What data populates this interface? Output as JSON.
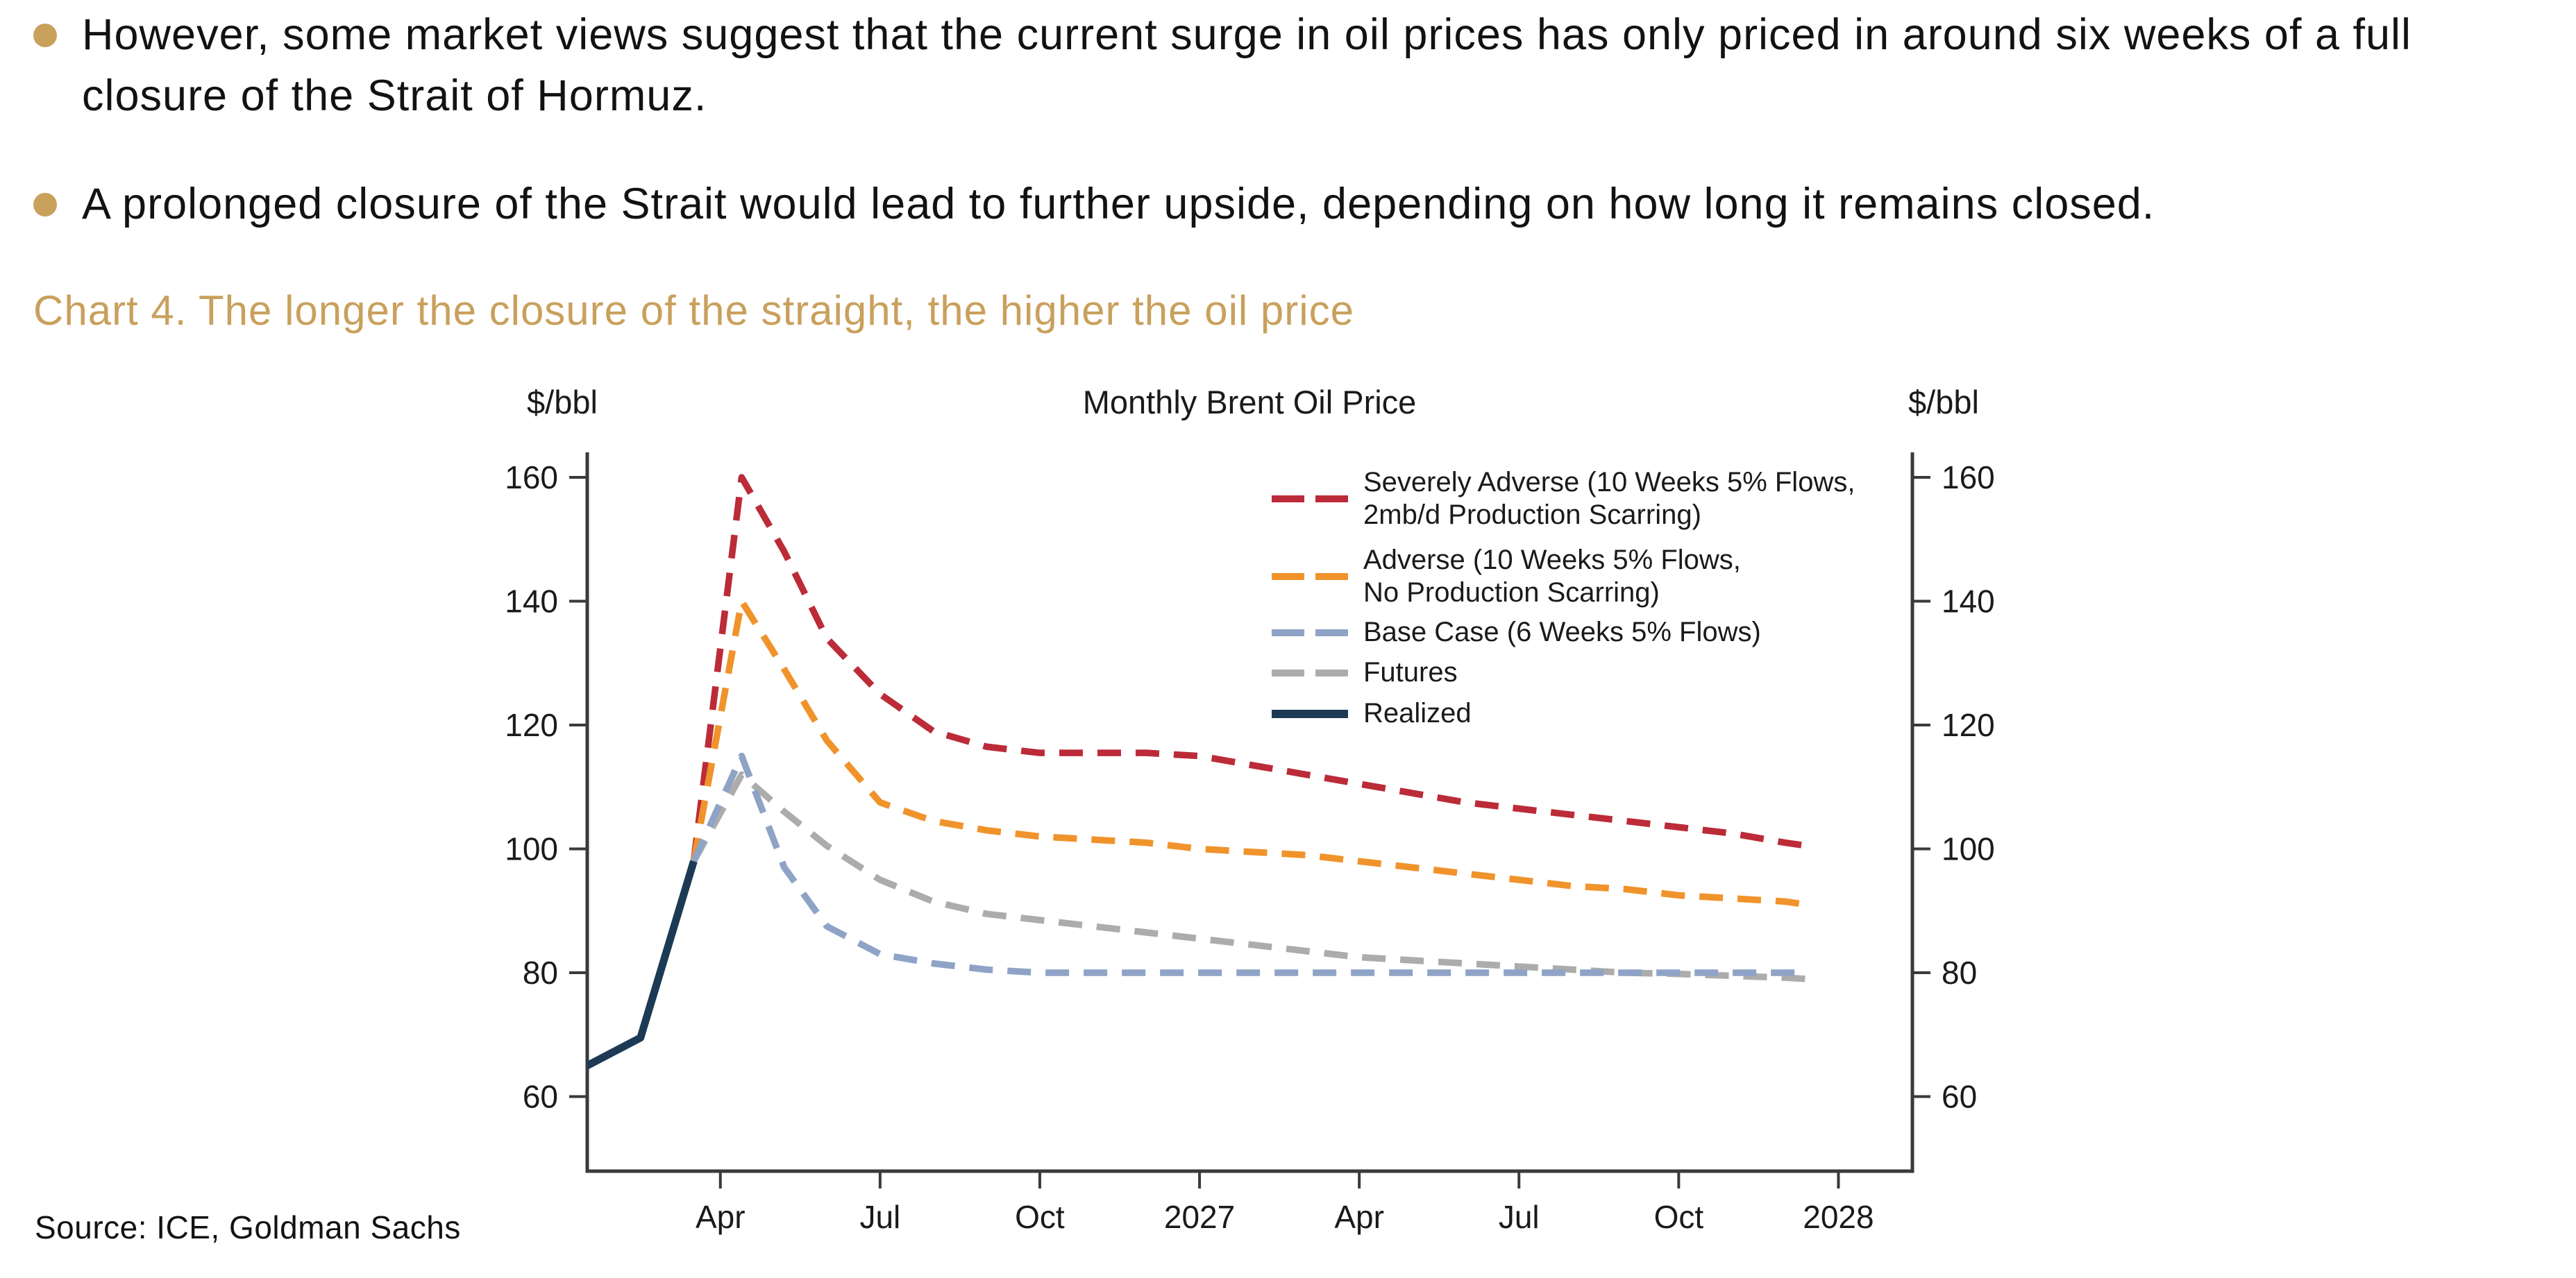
{
  "bullets": [
    {
      "text": "However, some market views suggest that the current surge in oil prices has only priced in around six weeks of a full closure of the Strait of Hormuz."
    },
    {
      "text": "A prolonged closure of the Strait would lead to further upside, depending on how long it remains closed."
    }
  ],
  "chart_heading": "Chart 4. The longer the closure of the straight, the higher the oil price",
  "source_line": "Source: ICE, Goldman Sachs",
  "colors": {
    "accent_gold": "#C9A05C",
    "severely_adverse_red": "#BC2B38",
    "adverse_orange": "#F0932B",
    "base_case_blue": "#8EA3C6",
    "futures_gray": "#ACACAC",
    "realized_navy": "#1C3A55",
    "axis_gray": "#3A3A3A"
  },
  "chart_data": {
    "type": "line",
    "title": "Monthly Brent Oil Price",
    "ylabel_left": "$/bbl",
    "ylabel_right": "$/bbl",
    "ylim": [
      48,
      164
    ],
    "y_ticks": [
      60,
      80,
      100,
      120,
      140,
      160
    ],
    "x_unit": "month index, 0 = Jan 2026",
    "x_ticks": [
      {
        "t": 3,
        "label": "Apr"
      },
      {
        "t": 6,
        "label": "Jul"
      },
      {
        "t": 9,
        "label": "Oct"
      },
      {
        "t": 12,
        "label": "2027"
      },
      {
        "t": 15,
        "label": "Apr"
      },
      {
        "t": 18,
        "label": "Jul"
      },
      {
        "t": 21,
        "label": "Oct"
      },
      {
        "t": 24,
        "label": "2028"
      }
    ],
    "grid": false,
    "legend_position": "upper-right-inside",
    "series": [
      {
        "name": "Severely Adverse (10 Weeks 5% Flows,\n2mb/d Production Scarring)",
        "color": "#BC2B38",
        "style": "dashed",
        "points": [
          [
            2.5,
            98
          ],
          [
            3.4,
            160
          ],
          [
            4.2,
            148
          ],
          [
            5,
            134
          ],
          [
            6,
            125
          ],
          [
            7,
            119
          ],
          [
            8,
            116.5
          ],
          [
            9,
            115.5
          ],
          [
            10,
            115.5
          ],
          [
            11,
            115.5
          ],
          [
            12,
            115
          ],
          [
            13,
            113.5
          ],
          [
            14,
            112
          ],
          [
            15,
            110.5
          ],
          [
            16,
            109
          ],
          [
            17,
            107.5
          ],
          [
            18,
            106.5
          ],
          [
            19,
            105.5
          ],
          [
            20,
            104.5
          ],
          [
            21,
            103.5
          ],
          [
            22,
            102.5
          ],
          [
            23,
            101
          ],
          [
            23.4,
            100.5
          ]
        ]
      },
      {
        "name": "Adverse (10 Weeks 5% Flows,\nNo Production Scarring)",
        "color": "#F0932B",
        "style": "dashed",
        "points": [
          [
            2.5,
            98
          ],
          [
            3.4,
            140
          ],
          [
            4.2,
            129
          ],
          [
            5,
            117.5
          ],
          [
            6,
            107.5
          ],
          [
            7,
            104.5
          ],
          [
            8,
            103
          ],
          [
            9,
            102
          ],
          [
            10,
            101.5
          ],
          [
            11,
            101
          ],
          [
            12,
            100
          ],
          [
            13,
            99.5
          ],
          [
            14,
            99
          ],
          [
            15,
            98
          ],
          [
            16,
            97
          ],
          [
            17,
            96
          ],
          [
            18,
            95
          ],
          [
            19,
            94
          ],
          [
            20,
            93.5
          ],
          [
            21,
            92.5
          ],
          [
            22,
            92
          ],
          [
            23,
            91.5
          ],
          [
            23.4,
            91
          ]
        ]
      },
      {
        "name": "Base Case (6 Weeks 5% Flows)",
        "color": "#8EA3C6",
        "style": "dashed",
        "points": [
          [
            2.5,
            98
          ],
          [
            3.4,
            115
          ],
          [
            4.2,
            97
          ],
          [
            5,
            87.5
          ],
          [
            6,
            83
          ],
          [
            7,
            81.5
          ],
          [
            8,
            80.5
          ],
          [
            9,
            80
          ],
          [
            10,
            80
          ],
          [
            11,
            80
          ],
          [
            12,
            80
          ],
          [
            13,
            80
          ],
          [
            14,
            80
          ],
          [
            15,
            80
          ],
          [
            16,
            80
          ],
          [
            17,
            80
          ],
          [
            18,
            80
          ],
          [
            19,
            80
          ],
          [
            20,
            80
          ],
          [
            21,
            80
          ],
          [
            22,
            80
          ],
          [
            23,
            80
          ],
          [
            23.4,
            80
          ]
        ]
      },
      {
        "name": "Futures",
        "color": "#ACACAC",
        "style": "dashed",
        "points": [
          [
            2.5,
            98
          ],
          [
            3.4,
            112
          ],
          [
            4.2,
            106
          ],
          [
            5,
            100.5
          ],
          [
            6,
            95
          ],
          [
            7,
            91.5
          ],
          [
            8,
            89.5
          ],
          [
            9,
            88.5
          ],
          [
            10,
            87.5
          ],
          [
            11,
            86.5
          ],
          [
            12,
            85.5
          ],
          [
            13,
            84.5
          ],
          [
            14,
            83.5
          ],
          [
            15,
            82.5
          ],
          [
            16,
            82
          ],
          [
            17,
            81.5
          ],
          [
            18,
            81
          ],
          [
            19,
            80.5
          ],
          [
            20,
            80
          ],
          [
            21,
            79.8
          ],
          [
            22,
            79.5
          ],
          [
            23,
            79.2
          ],
          [
            23.4,
            79
          ]
        ]
      },
      {
        "name": "Realized",
        "color": "#1C3A55",
        "style": "solid",
        "points": [
          [
            0.5,
            65
          ],
          [
            1.5,
            69.5
          ],
          [
            2.5,
            98
          ]
        ]
      }
    ]
  }
}
